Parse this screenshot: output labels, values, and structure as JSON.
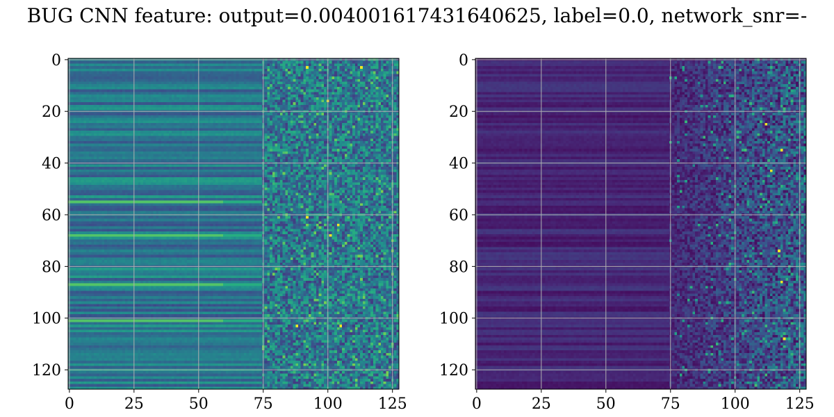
{
  "title": "BUG CNN feature: output=0.004001617431640625, label=0.0, network_snr=-",
  "chart_data": [
    {
      "type": "heatmap",
      "title": "",
      "colormap": "viridis",
      "shape": [
        128,
        128
      ],
      "xlim": [
        0,
        127
      ],
      "ylim": [
        127,
        0
      ],
      "xticks": [
        0,
        25,
        50,
        75,
        100,
        125
      ],
      "yticks": [
        0,
        20,
        40,
        60,
        80,
        100,
        120
      ],
      "grid": true,
      "columns_0_to_75": "horizontal row bands, medium values, teal/blue",
      "columns_75_to_127": "noisy, mixed values with scattered bright yellow-green pixels",
      "bright_rows": [
        55,
        68,
        87,
        101
      ],
      "hot_spots": [
        [
          3,
          92
        ],
        [
          3,
          113
        ],
        [
          16,
          100
        ],
        [
          61,
          92
        ],
        [
          64,
          104
        ],
        [
          68,
          101
        ],
        [
          103,
          88
        ],
        [
          103,
          105
        ]
      ]
    },
    {
      "type": "heatmap",
      "title": "",
      "colormap": "viridis",
      "shape": [
        128,
        128
      ],
      "xlim": [
        0,
        127
      ],
      "ylim": [
        127,
        0
      ],
      "xticks": [
        0,
        25,
        50,
        75,
        100,
        125
      ],
      "yticks": [
        0,
        20,
        40,
        60,
        80,
        100,
        120
      ],
      "grid": true,
      "columns_0_to_75": "dark purple, low values",
      "columns_75_to_127": "sparse brighter pixels increasing toward right edge",
      "hot_spots": [
        [
          35,
          118
        ],
        [
          43,
          114
        ],
        [
          86,
          118
        ],
        [
          108,
          119
        ],
        [
          25,
          112
        ],
        [
          74,
          117
        ]
      ]
    }
  ]
}
